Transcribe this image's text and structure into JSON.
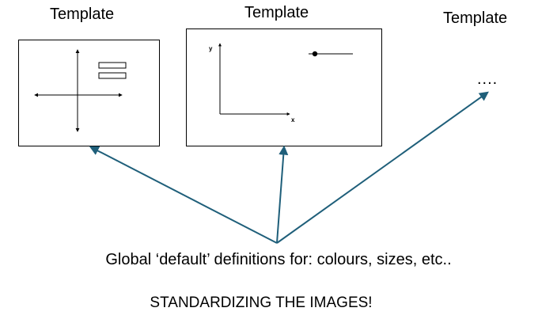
{
  "templates": [
    {
      "title": "Template"
    },
    {
      "title": "Template"
    },
    {
      "title": "Template"
    }
  ],
  "ellipsis": "....",
  "chart_axes": {
    "y_label": "y",
    "x_label": "x"
  },
  "global_definitions": "Global ‘default’ definitions for: colours, sizes, etc..",
  "footer": "STANDARDIZING THE IMAGES!",
  "colors": {
    "arrow": "#1f5f7a",
    "outline": "#000000"
  }
}
